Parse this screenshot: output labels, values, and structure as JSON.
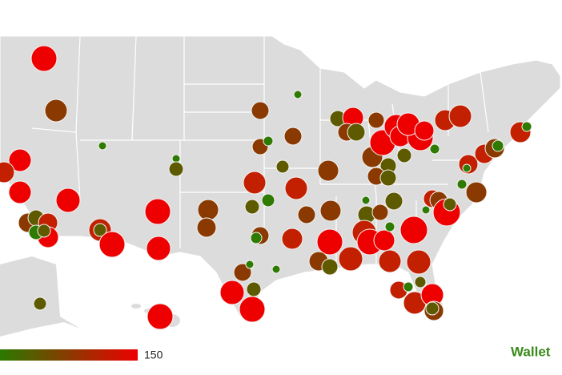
{
  "legend": {
    "max": 150
  },
  "brand": "Wallet"
}
